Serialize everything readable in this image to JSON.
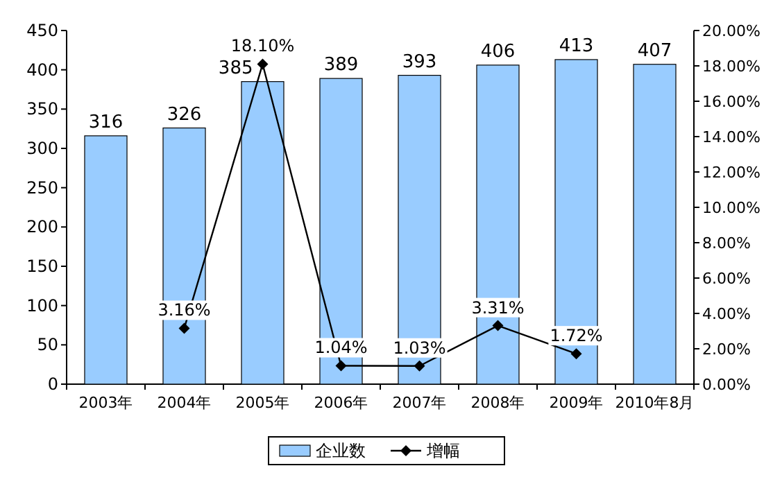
{
  "chart_data": {
    "type": "bar",
    "categories": [
      "2003年",
      "2004年",
      "2005年",
      "2006年",
      "2007年",
      "2008年",
      "2009年",
      "2010年8月"
    ],
    "series": [
      {
        "name": "企业数",
        "color": "#99ccff",
        "values": [
          316,
          326,
          385,
          389,
          393,
          406,
          413,
          407
        ],
        "value_labels": [
          "316",
          "326",
          "385",
          "389",
          "393",
          "406",
          "413",
          "407"
        ]
      },
      {
        "name": "增幅",
        "type": "line",
        "axis": "y2",
        "color": "#000000",
        "values": [
          null,
          3.16,
          18.1,
          1.04,
          1.03,
          3.31,
          1.72,
          null
        ],
        "value_labels": [
          null,
          "3.16%",
          "18.10%",
          "1.04%",
          "1.03%",
          "3.31%",
          "1.72%",
          null
        ]
      }
    ],
    "ylim": [
      0,
      450
    ],
    "yticks": [
      0,
      50,
      100,
      150,
      200,
      250,
      300,
      350,
      400,
      450
    ],
    "y2lim": [
      0,
      20
    ],
    "y2ticks": [
      {
        "value": 0,
        "label": "0.00%"
      },
      {
        "value": 2,
        "label": "2.00%"
      },
      {
        "value": 4,
        "label": "4.00%"
      },
      {
        "value": 6,
        "label": "6.00%"
      },
      {
        "value": 8,
        "label": "8.00%"
      },
      {
        "value": 10,
        "label": "10.00%"
      },
      {
        "value": 12,
        "label": "12.00%"
      },
      {
        "value": 14,
        "label": "14.00%"
      },
      {
        "value": 16,
        "label": "16.00%"
      },
      {
        "value": 18,
        "label": "18.00%"
      },
      {
        "value": 20,
        "label": "20.00%"
      }
    ],
    "legend": "bottom",
    "marker": "diamond",
    "line_style": "solid"
  }
}
